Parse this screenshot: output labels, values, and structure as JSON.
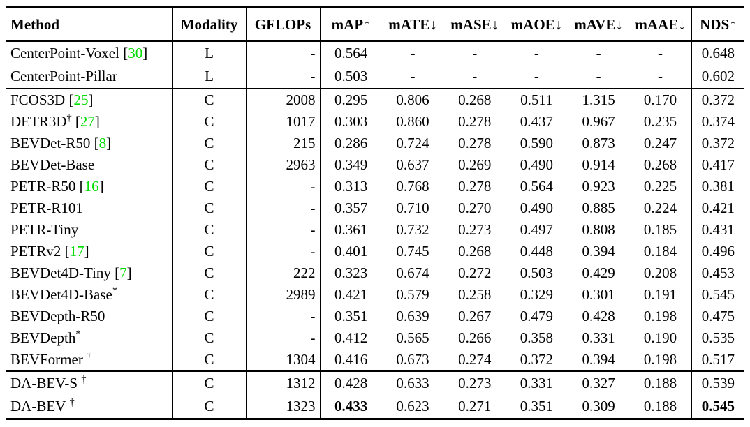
{
  "page": {
    "background": "#ffffff"
  },
  "colors": {
    "text": "#000000",
    "citation_green": "#00dd00",
    "rule": "#000000"
  },
  "table": {
    "columns": [
      {
        "id": "method",
        "label": "Method"
      },
      {
        "id": "modality",
        "label": "Modality"
      },
      {
        "id": "gflops",
        "label": "GFLOPs"
      },
      {
        "id": "map",
        "label": "mAP↑"
      },
      {
        "id": "mate",
        "label": "mATE↓"
      },
      {
        "id": "mase",
        "label": "mASE↓"
      },
      {
        "id": "maoe",
        "label": "mAOE↓"
      },
      {
        "id": "mave",
        "label": "mAVE↓"
      },
      {
        "id": "maae",
        "label": "mAAE↓"
      },
      {
        "id": "nds",
        "label": "NDS↑"
      }
    ],
    "groups": [
      {
        "rows": [
          {
            "name": "CenterPoint-Voxel",
            "sup": "",
            "sup_space": false,
            "cite": "30",
            "modality": "L",
            "gflops": "-",
            "metrics": [
              "0.564",
              "-",
              "-",
              "-",
              "-",
              "-",
              "0.648"
            ],
            "bold": []
          },
          {
            "name": "CenterPoint-Pillar",
            "sup": "",
            "sup_space": false,
            "cite": null,
            "modality": "L",
            "gflops": "-",
            "metrics": [
              "0.503",
              "-",
              "-",
              "-",
              "-",
              "-",
              "0.602"
            ],
            "bold": []
          }
        ]
      },
      {
        "rows": [
          {
            "name": "FCOS3D",
            "sup": "",
            "sup_space": false,
            "cite": "25",
            "modality": "C",
            "gflops": "2008",
            "metrics": [
              "0.295",
              "0.806",
              "0.268",
              "0.511",
              "1.315",
              "0.170",
              "0.372"
            ],
            "bold": []
          },
          {
            "name": "DETR3D",
            "sup": "†",
            "sup_space": false,
            "cite": "27",
            "modality": "C",
            "gflops": "1017",
            "metrics": [
              "0.303",
              "0.860",
              "0.278",
              "0.437",
              "0.967",
              "0.235",
              "0.374"
            ],
            "bold": []
          },
          {
            "name": "BEVDet-R50",
            "sup": "",
            "sup_space": false,
            "cite": "8",
            "modality": "C",
            "gflops": "215",
            "metrics": [
              "0.286",
              "0.724",
              "0.278",
              "0.590",
              "0.873",
              "0.247",
              "0.372"
            ],
            "bold": []
          },
          {
            "name": "BEVDet-Base",
            "sup": "",
            "sup_space": false,
            "cite": null,
            "modality": "C",
            "gflops": "2963",
            "metrics": [
              "0.349",
              "0.637",
              "0.269",
              "0.490",
              "0.914",
              "0.268",
              "0.417"
            ],
            "bold": []
          },
          {
            "name": "PETR-R50",
            "sup": "",
            "sup_space": false,
            "cite": "16",
            "modality": "C",
            "gflops": "-",
            "metrics": [
              "0.313",
              "0.768",
              "0.278",
              "0.564",
              "0.923",
              "0.225",
              "0.381"
            ],
            "bold": []
          },
          {
            "name": "PETR-R101",
            "sup": "",
            "sup_space": false,
            "cite": null,
            "modality": "C",
            "gflops": "-",
            "metrics": [
              "0.357",
              "0.710",
              "0.270",
              "0.490",
              "0.885",
              "0.224",
              "0.421"
            ],
            "bold": []
          },
          {
            "name": "PETR-Tiny",
            "sup": "",
            "sup_space": false,
            "cite": null,
            "modality": "C",
            "gflops": "-",
            "metrics": [
              "0.361",
              "0.732",
              "0.273",
              "0.497",
              "0.808",
              "0.185",
              "0.431"
            ],
            "bold": []
          },
          {
            "name": "PETRv2",
            "sup": "",
            "sup_space": false,
            "cite": "17",
            "modality": "C",
            "gflops": "-",
            "metrics": [
              "0.401",
              "0.745",
              "0.268",
              "0.448",
              "0.394",
              "0.184",
              "0.496"
            ],
            "bold": []
          },
          {
            "name": "BEVDet4D-Tiny",
            "sup": "",
            "sup_space": false,
            "cite": "7",
            "modality": "C",
            "gflops": "222",
            "metrics": [
              "0.323",
              "0.674",
              "0.272",
              "0.503",
              "0.429",
              "0.208",
              "0.453"
            ],
            "bold": []
          },
          {
            "name": "BEVDet4D-Base",
            "sup": "*",
            "sup_space": false,
            "cite": null,
            "modality": "C",
            "gflops": "2989",
            "metrics": [
              "0.421",
              "0.579",
              "0.258",
              "0.329",
              "0.301",
              "0.191",
              "0.545"
            ],
            "bold": []
          },
          {
            "name": "BEVDepth-R50",
            "sup": "",
            "sup_space": false,
            "cite": null,
            "modality": "C",
            "gflops": "-",
            "metrics": [
              "0.351",
              "0.639",
              "0.267",
              "0.479",
              "0.428",
              "0.198",
              "0.475"
            ],
            "bold": []
          },
          {
            "name": "BEVDepth",
            "sup": "*",
            "sup_space": false,
            "cite": null,
            "modality": "C",
            "gflops": "-",
            "metrics": [
              "0.412",
              "0.565",
              "0.266",
              "0.358",
              "0.331",
              "0.190",
              "0.535"
            ],
            "bold": []
          },
          {
            "name": "BEVFormer",
            "sup": "†",
            "sup_space": true,
            "cite": null,
            "modality": "C",
            "gflops": "1304",
            "metrics": [
              "0.416",
              "0.673",
              "0.274",
              "0.372",
              "0.394",
              "0.198",
              "0.517"
            ],
            "bold": []
          }
        ]
      },
      {
        "rows": [
          {
            "name": "DA-BEV-S",
            "sup": "†",
            "sup_space": true,
            "cite": null,
            "modality": "C",
            "gflops": "1312",
            "metrics": [
              "0.428",
              "0.633",
              "0.273",
              "0.331",
              "0.327",
              "0.188",
              "0.539"
            ],
            "bold": []
          },
          {
            "name": "DA-BEV",
            "sup": "†",
            "sup_space": true,
            "cite": null,
            "modality": "C",
            "gflops": "1323",
            "metrics": [
              "0.433",
              "0.623",
              "0.271",
              "0.351",
              "0.309",
              "0.188",
              "0.545"
            ],
            "bold": [
              0,
              6
            ]
          }
        ]
      }
    ]
  }
}
